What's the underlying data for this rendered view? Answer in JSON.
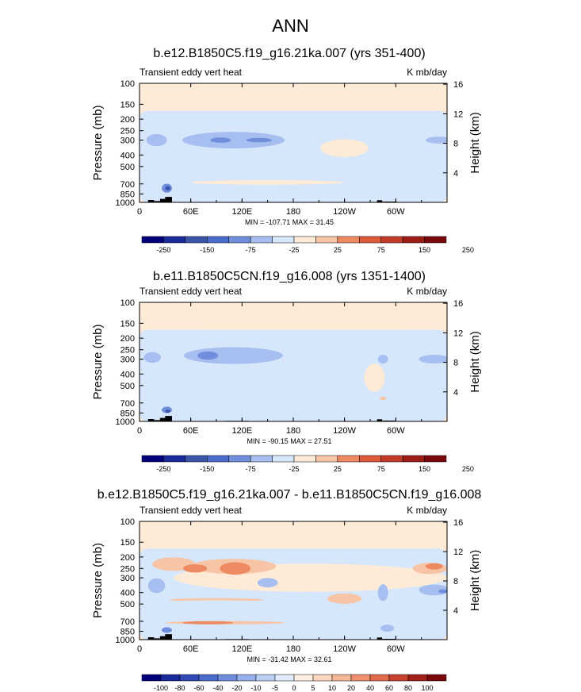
{
  "figure_title": "ANN",
  "colors": {
    "neg3": "#3a56a8",
    "neg2": "#6f8edc",
    "neg1": "#a7bff0",
    "neg0": "#d6e6fb",
    "pos0": "#fdebd8",
    "pos1": "#f7c4a6",
    "pos2": "#ee8a62",
    "pos3": "#dd5a3c",
    "topo": "#000000"
  },
  "chart_data": [
    {
      "type": "heatmap",
      "title": "b.e12.B1850C5.f19_g16.21ka.007 (yrs 351-400)",
      "left_string": "Transient eddy vert heat",
      "right_string": "K mb/day",
      "ylabel": "Pressure (mb)",
      "ylabel_right": "Height (km)",
      "xlim": [
        0,
        360
      ],
      "ylim_pressure": [
        1000,
        100
      ],
      "x_ticks": [
        "0",
        "60E",
        "120E",
        "180",
        "120W",
        "60W"
      ],
      "y_ticks": [
        "100",
        "150",
        "200",
        "250",
        "300",
        "400",
        "500",
        "700",
        "850",
        "1000"
      ],
      "y_ticks_right": [
        "16",
        "12",
        "8",
        "4"
      ],
      "minmax_text": "MIN = -107.71   MAX =  31.45",
      "colorbar_labels": [
        "-250",
        "-150",
        "-75",
        "-25",
        "25",
        "75",
        "150",
        "250"
      ],
      "blobs": [
        {
          "lon": 110,
          "p": 300,
          "dlon": 60,
          "dp": 95,
          "level": 1
        },
        {
          "lon": 140,
          "p": 300,
          "dlon": 15,
          "dp": 25,
          "level": 2
        },
        {
          "lon": 95,
          "p": 300,
          "dlon": 12,
          "dp": 30,
          "level": 2
        },
        {
          "lon": 20,
          "p": 300,
          "dlon": 12,
          "dp": 70,
          "level": 1
        },
        {
          "lon": 350,
          "p": 300,
          "dlon": 15,
          "dp": 40,
          "level": 1
        },
        {
          "lon": 32,
          "p": 760,
          "dlon": 6,
          "dp": 130,
          "level": 2
        },
        {
          "lon": 33,
          "p": 760,
          "dlon": 3,
          "dp": 60,
          "level": 3
        }
      ],
      "warm": [
        {
          "lon": 240,
          "p": 350,
          "dlon": 28,
          "dp": 120,
          "level": 0
        },
        {
          "lon": 150,
          "p": 680,
          "dlon": 90,
          "dp": 60,
          "level": 0
        }
      ],
      "topo": [
        [
          10,
          17,
          955
        ],
        [
          17,
          24,
          975
        ],
        [
          24,
          30,
          935
        ],
        [
          30,
          38,
          900
        ],
        [
          278,
          284,
          960
        ],
        [
          284,
          300,
          985
        ]
      ]
    },
    {
      "type": "heatmap",
      "title": "b.e11.B1850C5CN.f19_g16.008 (yrs 1351-1400)",
      "left_string": "Transient eddy vert heat",
      "right_string": "K mb/day",
      "ylabel": "Pressure (mb)",
      "ylabel_right": "Height (km)",
      "xlim": [
        0,
        360
      ],
      "ylim_pressure": [
        1000,
        100
      ],
      "x_ticks": [
        "0",
        "60E",
        "120E",
        "180",
        "120W",
        "60W"
      ],
      "y_ticks": [
        "100",
        "150",
        "200",
        "250",
        "300",
        "400",
        "500",
        "700",
        "850",
        "1000"
      ],
      "y_ticks_right": [
        "16",
        "12",
        "8",
        "4"
      ],
      "minmax_text": "MIN = -90.15   MAX =  27.51",
      "colorbar_labels": [
        "-250",
        "-150",
        "-75",
        "-25",
        "25",
        "75",
        "150",
        "250"
      ],
      "blobs": [
        {
          "lon": 110,
          "p": 280,
          "dlon": 58,
          "dp": 90,
          "level": 1
        },
        {
          "lon": 80,
          "p": 280,
          "dlon": 12,
          "dp": 45,
          "level": 2
        },
        {
          "lon": 15,
          "p": 290,
          "dlon": 10,
          "dp": 60,
          "level": 1
        },
        {
          "lon": 345,
          "p": 300,
          "dlon": 18,
          "dp": 50,
          "level": 1
        },
        {
          "lon": 285,
          "p": 300,
          "dlon": 6,
          "dp": 50,
          "level": 1
        },
        {
          "lon": 32,
          "p": 800,
          "dlon": 6,
          "dp": 100,
          "level": 2
        },
        {
          "lon": 33,
          "p": 820,
          "dlon": 3,
          "dp": 50,
          "level": 3
        }
      ],
      "warm": [
        {
          "lon": 275,
          "p": 430,
          "dlon": 12,
          "dp": 230,
          "level": 0
        },
        {
          "lon": 285,
          "p": 640,
          "dlon": 4,
          "dp": 40,
          "level": 1
        }
      ],
      "topo": [
        [
          10,
          17,
          955
        ],
        [
          17,
          24,
          975
        ],
        [
          24,
          30,
          935
        ],
        [
          30,
          38,
          900
        ],
        [
          100,
          128,
          990
        ],
        [
          278,
          284,
          960
        ],
        [
          284,
          300,
          985
        ]
      ]
    },
    {
      "type": "heatmap",
      "title": "b.e12.B1850C5.f19_g16.21ka.007 - b.e11.B1850C5CN.f19_g16.008",
      "left_string": "Transient eddy vert heat",
      "right_string": "K mb/day",
      "ylabel": "Pressure (mb)",
      "ylabel_right": "Height (km)",
      "xlim": [
        0,
        360
      ],
      "ylim_pressure": [
        1000,
        100
      ],
      "x_ticks": [
        "0",
        "60E",
        "120E",
        "180",
        "120W",
        "60W"
      ],
      "y_ticks": [
        "100",
        "150",
        "200",
        "250",
        "300",
        "400",
        "500",
        "700",
        "850",
        "1000"
      ],
      "y_ticks_right": [
        "16",
        "12",
        "8",
        "4"
      ],
      "minmax_text": "MIN = -31.42   MAX =  32.61",
      "colorbar_labels": [
        "-100",
        "-80",
        "-60",
        "-40",
        "-20",
        "-10",
        "-5",
        "0",
        "5",
        "10",
        "20",
        "40",
        "60",
        "80",
        "100"
      ],
      "blobs": [
        {
          "lon": 20,
          "p": 350,
          "dlon": 10,
          "dp": 100,
          "level": 1
        },
        {
          "lon": 345,
          "p": 380,
          "dlon": 18,
          "dp": 80,
          "level": 1
        },
        {
          "lon": 355,
          "p": 390,
          "dlon": 5,
          "dp": 30,
          "level": 2
        },
        {
          "lon": 150,
          "p": 330,
          "dlon": 12,
          "dp": 60,
          "level": 1
        },
        {
          "lon": 285,
          "p": 400,
          "dlon": 6,
          "dp": 130,
          "level": 1
        },
        {
          "lon": 90,
          "p": 480,
          "dlon": 60,
          "dp": 30,
          "level": 0
        },
        {
          "lon": 32,
          "p": 830,
          "dlon": 6,
          "dp": 90,
          "level": 2
        },
        {
          "lon": 290,
          "p": 800,
          "dlon": 8,
          "dp": 110,
          "level": 1
        }
      ],
      "warm": [
        {
          "lon": 200,
          "p": 300,
          "dlon": 160,
          "dp": 160,
          "level": 0
        },
        {
          "lon": 40,
          "p": 230,
          "dlon": 25,
          "dp": 60,
          "level": 1
        },
        {
          "lon": 110,
          "p": 240,
          "dlon": 50,
          "dp": 70,
          "level": 1
        },
        {
          "lon": 65,
          "p": 250,
          "dlon": 14,
          "dp": 40,
          "level": 2
        },
        {
          "lon": 112,
          "p": 250,
          "dlon": 18,
          "dp": 60,
          "level": 2
        },
        {
          "lon": 340,
          "p": 250,
          "dlon": 20,
          "dp": 55,
          "level": 1
        },
        {
          "lon": 345,
          "p": 240,
          "dlon": 10,
          "dp": 30,
          "level": 2
        },
        {
          "lon": 90,
          "p": 460,
          "dlon": 55,
          "dp": 25,
          "level": 1
        },
        {
          "lon": 100,
          "p": 720,
          "dlon": 70,
          "dp": 35,
          "level": 1
        },
        {
          "lon": 80,
          "p": 720,
          "dlon": 30,
          "dp": 18,
          "level": 2
        },
        {
          "lon": 240,
          "p": 450,
          "dlon": 20,
          "dp": 90,
          "level": 1
        }
      ],
      "topo": [
        [
          10,
          17,
          955
        ],
        [
          17,
          24,
          975
        ],
        [
          24,
          30,
          935
        ],
        [
          30,
          38,
          900
        ],
        [
          100,
          128,
          990
        ],
        [
          278,
          284,
          960
        ],
        [
          284,
          300,
          985
        ]
      ]
    }
  ]
}
